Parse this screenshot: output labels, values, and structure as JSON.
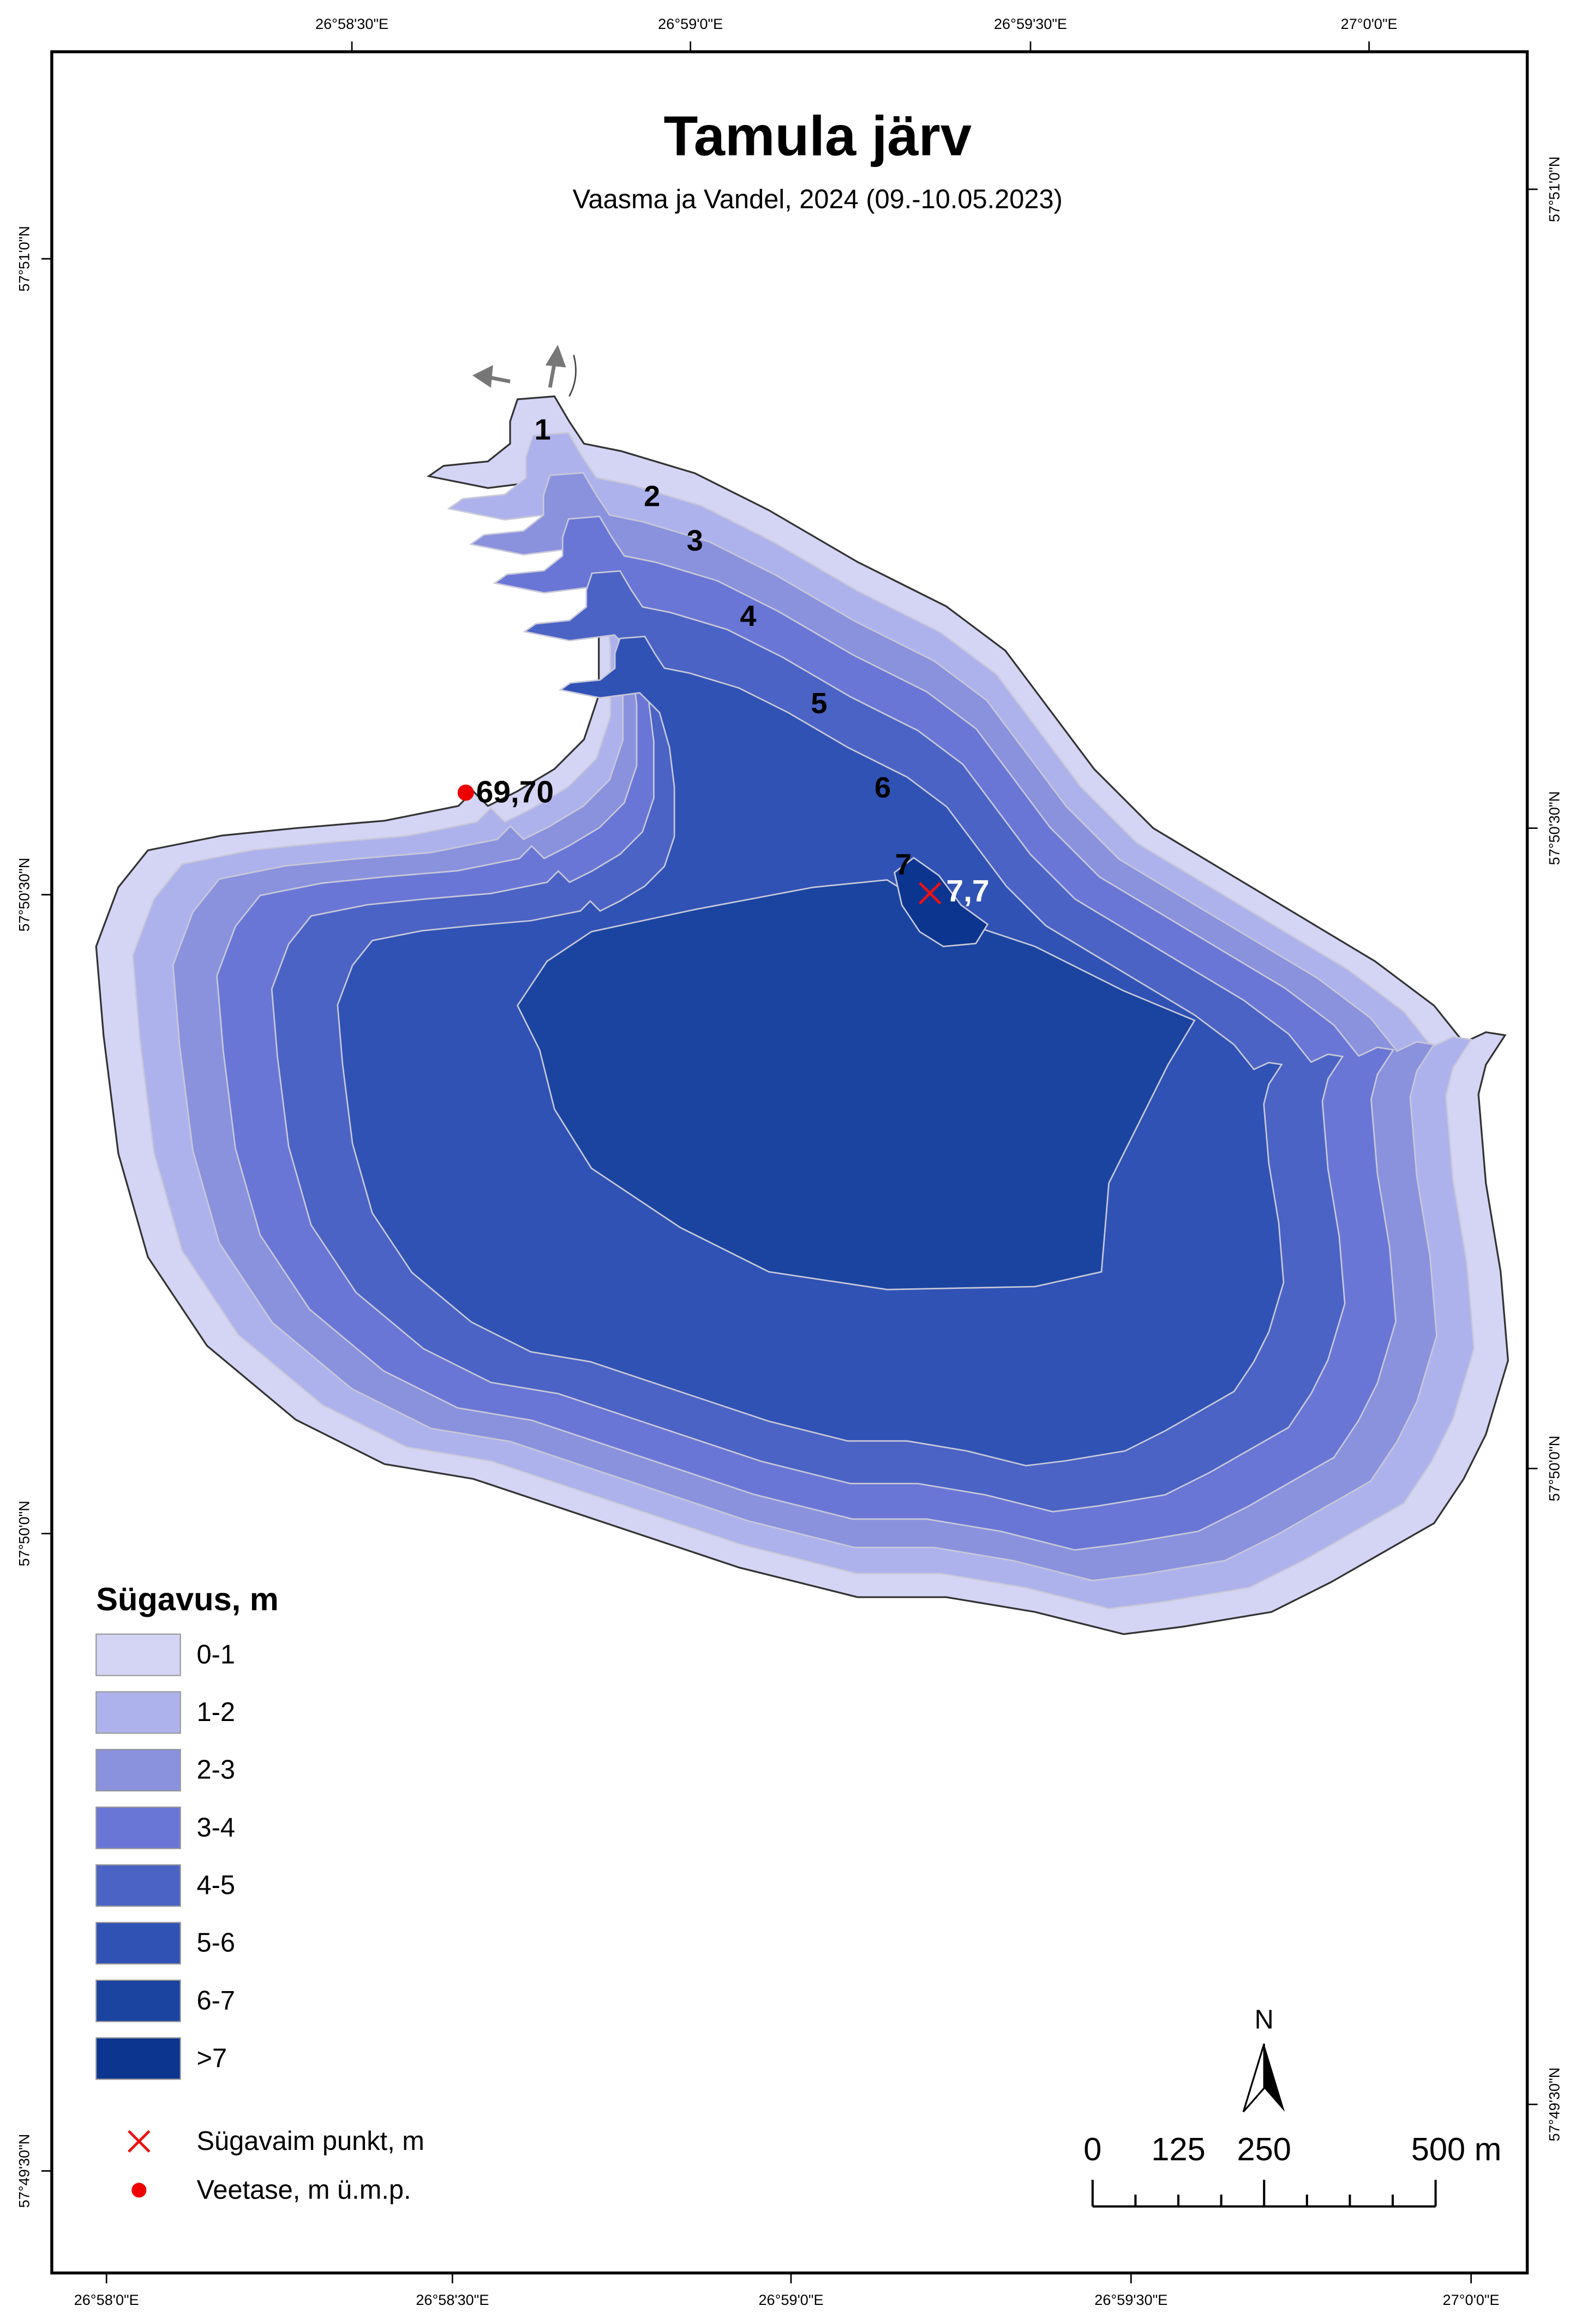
{
  "title": "Tamula järv",
  "subtitle": "Vaasma ja Vandel, 2024 (09.-10.05.2023)",
  "graticule": {
    "top": [
      "26°58'30\"E",
      "26°59'0\"E",
      "26°59'30\"E",
      "27°0'0\"E"
    ],
    "bottom": [
      "26°58'0\"E",
      "26°58'30\"E",
      "26°59'0\"E",
      "26°59'30\"E",
      "27°0'0\"E"
    ],
    "left": [
      "57°51'0\"N",
      "57°50'30\"N",
      "57°50'0\"N",
      "57°49'30\"N"
    ],
    "right": [
      "57°51'0\"N",
      "57°50'30\"N",
      "57°50'0\"N",
      "57°49'30\"N"
    ]
  },
  "depth_legend": {
    "title": "Sügavus, m",
    "classes": [
      {
        "label": "0-1",
        "color": "#d4d5f5"
      },
      {
        "label": "1-2",
        "color": "#aeb2ec"
      },
      {
        "label": "2-3",
        "color": "#8a92de"
      },
      {
        "label": "3-4",
        "color": "#6a76d6"
      },
      {
        "label": "4-5",
        "color": "#4b63c4"
      },
      {
        "label": "5-6",
        "color": "#3052b5"
      },
      {
        "label": "6-7",
        "color": "#1a44a0"
      },
      {
        "label": ">7",
        "color": "#0c3590"
      }
    ]
  },
  "contour_labels": [
    "1",
    "2",
    "3",
    "4",
    "5",
    "6",
    "7"
  ],
  "deepest_point": {
    "label": "7,7",
    "legend": "Sügavaim punkt, m"
  },
  "water_level": {
    "label": "69,70",
    "legend": "Veetase, m ü.m.p."
  },
  "scale_bar": {
    "labels": [
      "0",
      "125",
      "250",
      "500 m"
    ]
  },
  "north": "N"
}
